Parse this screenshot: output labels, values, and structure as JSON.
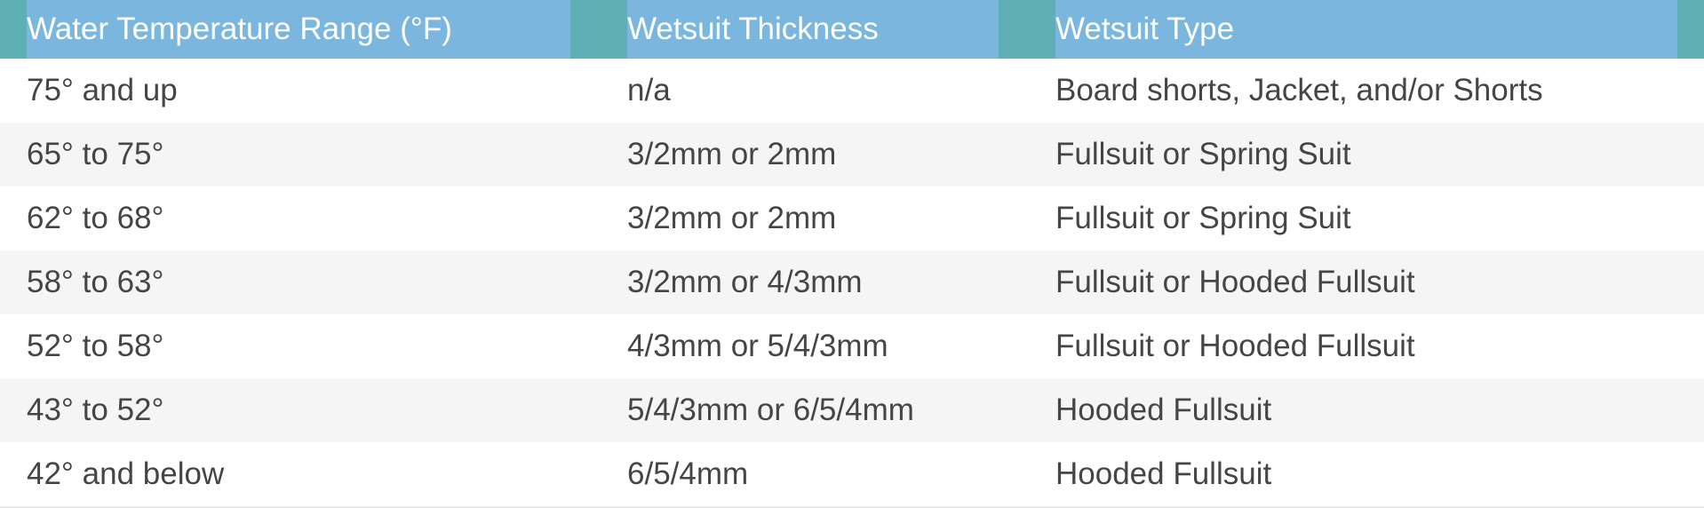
{
  "table": {
    "headers": [
      "Water Temperature Range (°F)",
      "Wetsuit Thickness",
      "Wetsuit Type"
    ],
    "rows": [
      [
        "75° and up",
        "n/a",
        "Board shorts, Jacket, and/or Shorts"
      ],
      [
        "65° to 75°",
        "3/2mm or 2mm",
        "Fullsuit or Spring Suit"
      ],
      [
        "62° to 68°",
        "3/2mm or 2mm",
        "Fullsuit or Spring Suit"
      ],
      [
        "58° to 63°",
        "3/2mm or 4/3mm",
        "Fullsuit or Hooded Fullsuit"
      ],
      [
        "52° to 58°",
        "4/3mm or 5/4/3mm",
        "Fullsuit or Hooded Fullsuit"
      ],
      [
        "43° to 52°",
        "5/4/3mm or 6/5/4mm",
        "Hooded Fullsuit"
      ],
      [
        "42° and below",
        "6/5/4mm",
        "Hooded Fullsuit"
      ]
    ]
  },
  "colors": {
    "header_bg": "#7ab6de",
    "header_accent": "#5fb0b5",
    "header_text": "#ffffff",
    "body_text": "#454545",
    "alt_row_bg": "#f5f5f5"
  }
}
